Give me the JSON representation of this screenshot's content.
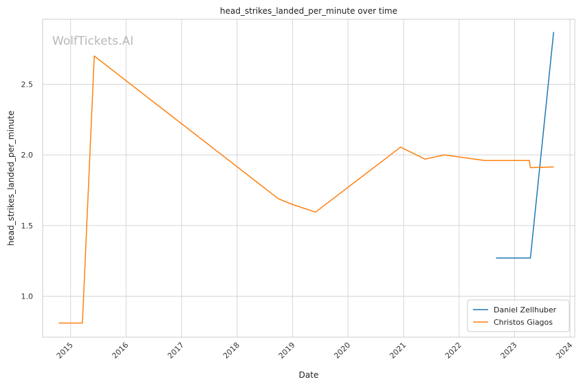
{
  "chart_data": {
    "type": "line",
    "title": "head_strikes_landed_per_minute over time",
    "xlabel": "Date",
    "ylabel": "head_strikes_landed_per_minute",
    "watermark": "WolfTickets.AI",
    "x_ticks": [
      "2015",
      "2016",
      "2017",
      "2018",
      "2019",
      "2020",
      "2021",
      "2022",
      "2023",
      "2024"
    ],
    "y_ticks": [
      "1.0",
      "1.5",
      "2.0",
      "2.5"
    ],
    "xlim": [
      "2014-07-01",
      "2024-02-01"
    ],
    "ylim": [
      0.71,
      2.96
    ],
    "grid": true,
    "legend_position": "lower-right",
    "series": [
      {
        "name": "Daniel Zellhuber",
        "color": "#1f77b4",
        "points": [
          {
            "x": "2022-09-01",
            "y": 1.27
          },
          {
            "x": "2023-04-15",
            "y": 1.27
          },
          {
            "x": "2023-09-15",
            "y": 2.87
          }
        ]
      },
      {
        "name": "Christos Giagos",
        "color": "#ff7f0e",
        "points": [
          {
            "x": "2014-10-15",
            "y": 0.81
          },
          {
            "x": "2015-03-20",
            "y": 0.81
          },
          {
            "x": "2015-06-06",
            "y": 2.7
          },
          {
            "x": "2018-09-29",
            "y": 1.69
          },
          {
            "x": "2018-12-29",
            "y": 1.65
          },
          {
            "x": "2019-06-01",
            "y": 1.595
          },
          {
            "x": "2020-12-12",
            "y": 2.055
          },
          {
            "x": "2021-05-22",
            "y": 1.97
          },
          {
            "x": "2021-09-25",
            "y": 2.0
          },
          {
            "x": "2022-06-18",
            "y": 1.96
          },
          {
            "x": "2023-04-08",
            "y": 1.96
          },
          {
            "x": "2023-04-15",
            "y": 1.91
          },
          {
            "x": "2023-09-16",
            "y": 1.915
          }
        ]
      }
    ]
  }
}
